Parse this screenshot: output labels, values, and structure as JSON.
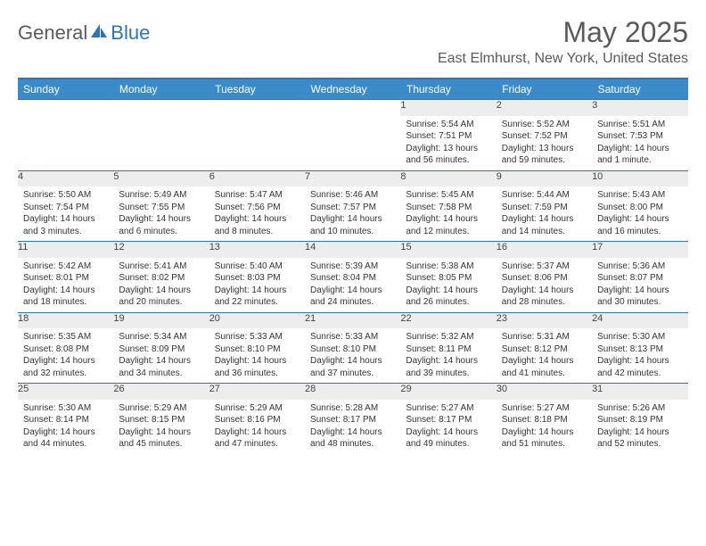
{
  "brand": {
    "part1": "General",
    "part2": "Blue"
  },
  "title": "May 2025",
  "location": "East Elmhurst, New York, United States",
  "colors": {
    "header_bg": "#3b8bc9",
    "border": "#2b74b8",
    "daynum_bg": "#ededed",
    "text": "#333333",
    "title_text": "#5a5a5a"
  },
  "weekdays": [
    "Sunday",
    "Monday",
    "Tuesday",
    "Wednesday",
    "Thursday",
    "Friday",
    "Saturday"
  ],
  "weeks": [
    [
      null,
      null,
      null,
      null,
      {
        "n": "1",
        "sr": "5:54 AM",
        "ss": "7:51 PM",
        "dl": "13 hours and 56 minutes."
      },
      {
        "n": "2",
        "sr": "5:52 AM",
        "ss": "7:52 PM",
        "dl": "13 hours and 59 minutes."
      },
      {
        "n": "3",
        "sr": "5:51 AM",
        "ss": "7:53 PM",
        "dl": "14 hours and 1 minute."
      }
    ],
    [
      {
        "n": "4",
        "sr": "5:50 AM",
        "ss": "7:54 PM",
        "dl": "14 hours and 3 minutes."
      },
      {
        "n": "5",
        "sr": "5:49 AM",
        "ss": "7:55 PM",
        "dl": "14 hours and 6 minutes."
      },
      {
        "n": "6",
        "sr": "5:47 AM",
        "ss": "7:56 PM",
        "dl": "14 hours and 8 minutes."
      },
      {
        "n": "7",
        "sr": "5:46 AM",
        "ss": "7:57 PM",
        "dl": "14 hours and 10 minutes."
      },
      {
        "n": "8",
        "sr": "5:45 AM",
        "ss": "7:58 PM",
        "dl": "14 hours and 12 minutes."
      },
      {
        "n": "9",
        "sr": "5:44 AM",
        "ss": "7:59 PM",
        "dl": "14 hours and 14 minutes."
      },
      {
        "n": "10",
        "sr": "5:43 AM",
        "ss": "8:00 PM",
        "dl": "14 hours and 16 minutes."
      }
    ],
    [
      {
        "n": "11",
        "sr": "5:42 AM",
        "ss": "8:01 PM",
        "dl": "14 hours and 18 minutes."
      },
      {
        "n": "12",
        "sr": "5:41 AM",
        "ss": "8:02 PM",
        "dl": "14 hours and 20 minutes."
      },
      {
        "n": "13",
        "sr": "5:40 AM",
        "ss": "8:03 PM",
        "dl": "14 hours and 22 minutes."
      },
      {
        "n": "14",
        "sr": "5:39 AM",
        "ss": "8:04 PM",
        "dl": "14 hours and 24 minutes."
      },
      {
        "n": "15",
        "sr": "5:38 AM",
        "ss": "8:05 PM",
        "dl": "14 hours and 26 minutes."
      },
      {
        "n": "16",
        "sr": "5:37 AM",
        "ss": "8:06 PM",
        "dl": "14 hours and 28 minutes."
      },
      {
        "n": "17",
        "sr": "5:36 AM",
        "ss": "8:07 PM",
        "dl": "14 hours and 30 minutes."
      }
    ],
    [
      {
        "n": "18",
        "sr": "5:35 AM",
        "ss": "8:08 PM",
        "dl": "14 hours and 32 minutes."
      },
      {
        "n": "19",
        "sr": "5:34 AM",
        "ss": "8:09 PM",
        "dl": "14 hours and 34 minutes."
      },
      {
        "n": "20",
        "sr": "5:33 AM",
        "ss": "8:10 PM",
        "dl": "14 hours and 36 minutes."
      },
      {
        "n": "21",
        "sr": "5:33 AM",
        "ss": "8:10 PM",
        "dl": "14 hours and 37 minutes."
      },
      {
        "n": "22",
        "sr": "5:32 AM",
        "ss": "8:11 PM",
        "dl": "14 hours and 39 minutes."
      },
      {
        "n": "23",
        "sr": "5:31 AM",
        "ss": "8:12 PM",
        "dl": "14 hours and 41 minutes."
      },
      {
        "n": "24",
        "sr": "5:30 AM",
        "ss": "8:13 PM",
        "dl": "14 hours and 42 minutes."
      }
    ],
    [
      {
        "n": "25",
        "sr": "5:30 AM",
        "ss": "8:14 PM",
        "dl": "14 hours and 44 minutes."
      },
      {
        "n": "26",
        "sr": "5:29 AM",
        "ss": "8:15 PM",
        "dl": "14 hours and 45 minutes."
      },
      {
        "n": "27",
        "sr": "5:29 AM",
        "ss": "8:16 PM",
        "dl": "14 hours and 47 minutes."
      },
      {
        "n": "28",
        "sr": "5:28 AM",
        "ss": "8:17 PM",
        "dl": "14 hours and 48 minutes."
      },
      {
        "n": "29",
        "sr": "5:27 AM",
        "ss": "8:17 PM",
        "dl": "14 hours and 49 minutes."
      },
      {
        "n": "30",
        "sr": "5:27 AM",
        "ss": "8:18 PM",
        "dl": "14 hours and 51 minutes."
      },
      {
        "n": "31",
        "sr": "5:26 AM",
        "ss": "8:19 PM",
        "dl": "14 hours and 52 minutes."
      }
    ]
  ],
  "labels": {
    "sunrise": "Sunrise:",
    "sunset": "Sunset:",
    "daylight": "Daylight:"
  }
}
